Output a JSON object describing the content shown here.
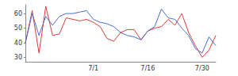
{
  "chart_data": {
    "type": "line",
    "categories": [
      null,
      null,
      null,
      null,
      null,
      null,
      null,
      null,
      null,
      null,
      "7/1",
      null,
      null,
      null,
      null,
      null,
      null,
      null,
      "7/16",
      null,
      null,
      null,
      null,
      null,
      null,
      null,
      "7/30",
      null,
      null
    ],
    "series": [
      {
        "color": "#e03a3a",
        "values": [
          40,
          62,
          33,
          65,
          45,
          46,
          57,
          56,
          55,
          56,
          54,
          51,
          43,
          41,
          47,
          49,
          49,
          42,
          48,
          50,
          51,
          56,
          52,
          60,
          47,
          38,
          30,
          35,
          45
        ]
      },
      {
        "color": "#4a6cd4",
        "values": [
          40,
          60,
          45,
          58,
          52,
          58,
          60,
          60,
          61,
          62,
          56,
          54,
          53,
          51,
          47,
          45,
          44,
          42,
          48,
          51,
          63,
          57,
          56,
          50,
          45,
          36,
          33,
          44,
          38
        ]
      }
    ],
    "ylim": [
      27,
      66
    ],
    "yticks": [
      30,
      40,
      50,
      60
    ],
    "grid": false
  }
}
